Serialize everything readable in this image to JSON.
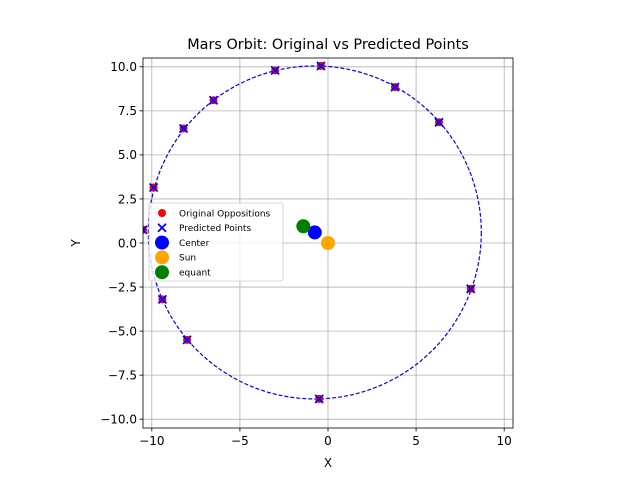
{
  "chart_data": {
    "type": "scatter",
    "title": "Mars Orbit: Original vs Predicted Points",
    "xlabel": "X",
    "ylabel": "Y",
    "xlim": [
      -10.5,
      10.5
    ],
    "ylim": [
      -10.5,
      10.5
    ],
    "xticks": [
      -10,
      -5,
      0,
      5,
      10
    ],
    "yticks": [
      -10.0,
      -7.5,
      -5.0,
      -2.5,
      0.0,
      2.5,
      5.0,
      7.5,
      10.0
    ],
    "xtick_labels": [
      "−10",
      "−5",
      "0",
      "5",
      "10"
    ],
    "ytick_labels": [
      "−10.0",
      "−7.5",
      "−5.0",
      "−2.5",
      "0.0",
      "2.5",
      "5.0",
      "7.5",
      "10.0"
    ],
    "grid": true,
    "legend_position": "center-left",
    "orbit_circle": {
      "center": [
        -0.75,
        0.6
      ],
      "radius": 9.45,
      "color": "#0000ff",
      "style": "dashed"
    },
    "series": [
      {
        "name": "Original Oppositions",
        "marker": "circle",
        "color": "#ff0000",
        "points": [
          [
            -0.4,
            10.05
          ],
          [
            -3.0,
            9.8
          ],
          [
            -6.5,
            8.1
          ],
          [
            -8.2,
            6.5
          ],
          [
            -9.9,
            3.15
          ],
          [
            -10.5,
            0.75
          ],
          [
            -9.4,
            -3.2
          ],
          [
            -8.0,
            -5.5
          ],
          [
            -0.5,
            -8.85
          ],
          [
            8.1,
            -2.6
          ],
          [
            6.3,
            6.85
          ],
          [
            3.8,
            8.85
          ]
        ]
      },
      {
        "name": "Predicted Points",
        "marker": "x",
        "color": "#0000ff",
        "points": [
          [
            -0.4,
            10.05
          ],
          [
            -3.0,
            9.8
          ],
          [
            -6.5,
            8.1
          ],
          [
            -8.2,
            6.5
          ],
          [
            -9.9,
            3.15
          ],
          [
            -10.5,
            0.75
          ],
          [
            -9.4,
            -3.2
          ],
          [
            -8.0,
            -5.5
          ],
          [
            -0.5,
            -8.85
          ],
          [
            8.1,
            -2.6
          ],
          [
            6.3,
            6.85
          ],
          [
            3.8,
            8.85
          ]
        ]
      },
      {
        "name": "Center",
        "marker": "circle-large",
        "color": "#0000ff",
        "points": [
          [
            -0.75,
            0.6
          ]
        ]
      },
      {
        "name": "Sun",
        "marker": "circle-large",
        "color": "#ffa500",
        "points": [
          [
            0.0,
            0.0
          ]
        ]
      },
      {
        "name": "equant",
        "marker": "circle-large",
        "color": "#008000",
        "points": [
          [
            -1.4,
            0.95
          ]
        ]
      }
    ]
  }
}
